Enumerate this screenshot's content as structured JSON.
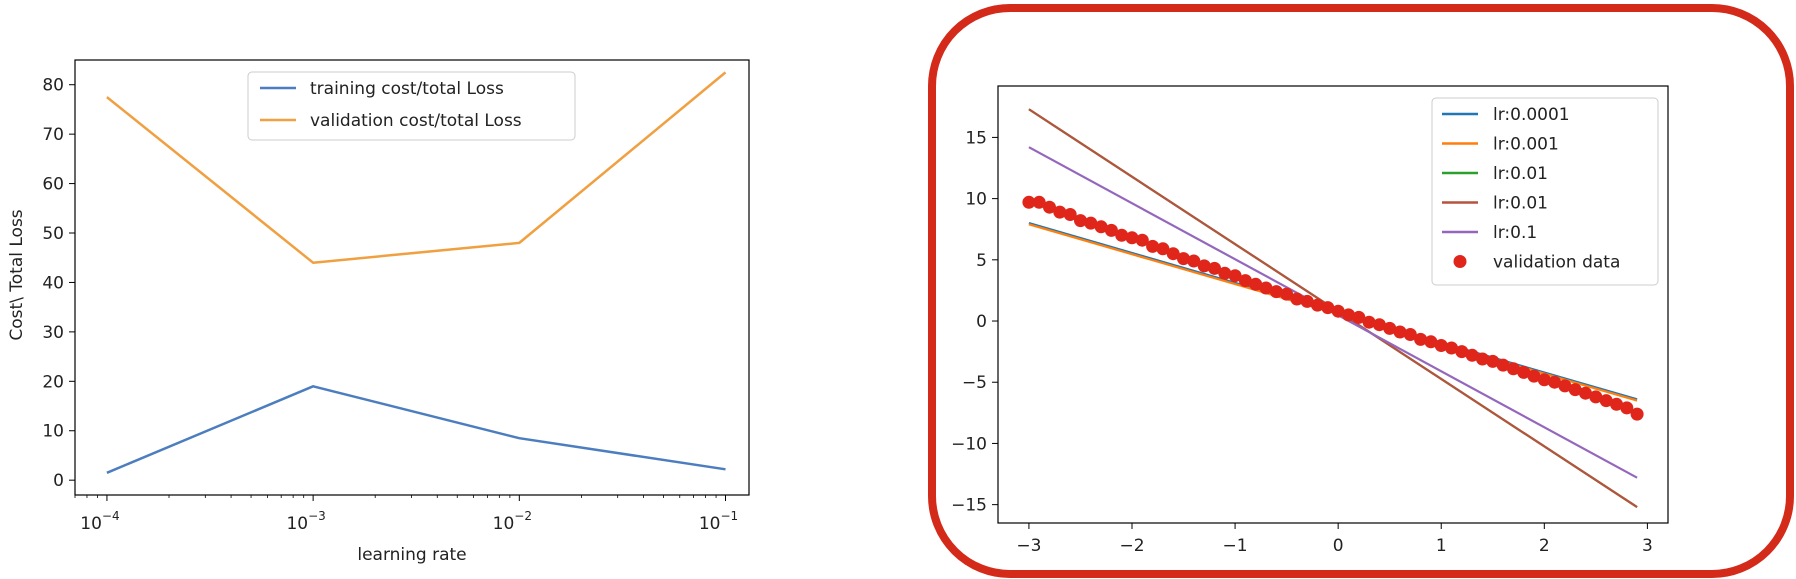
{
  "chart_data": [
    {
      "type": "line",
      "xscale": "log",
      "x": [
        0.0001,
        0.001,
        0.01,
        0.1
      ],
      "xlim": [
        7e-05,
        0.13
      ],
      "ylim": [
        -3,
        85
      ],
      "xlabel": "learning rate",
      "ylabel": "Cost\\ Total Loss",
      "x_ticks": [
        {
          "value": 0.0001,
          "base": "10",
          "exp": "−4"
        },
        {
          "value": 0.001,
          "base": "10",
          "exp": "−3"
        },
        {
          "value": 0.01,
          "base": "10",
          "exp": "−2"
        },
        {
          "value": 0.1,
          "base": "10",
          "exp": "−1"
        }
      ],
      "y_ticks": [
        {
          "value": 0,
          "label": "0"
        },
        {
          "value": 10,
          "label": "10"
        },
        {
          "value": 20,
          "label": "20"
        },
        {
          "value": 30,
          "label": "30"
        },
        {
          "value": 40,
          "label": "40"
        },
        {
          "value": 50,
          "label": "50"
        },
        {
          "value": 60,
          "label": "60"
        },
        {
          "value": 70,
          "label": "70"
        },
        {
          "value": 80,
          "label": "80"
        }
      ],
      "legend_position": "top-center",
      "grid": false,
      "series": [
        {
          "name": "training cost/total Loss",
          "color": "#4c7ebf",
          "values": [
            1.5,
            19,
            8.5,
            2.2
          ]
        },
        {
          "name": "validation cost/total Loss",
          "color": "#f0a040",
          "values": [
            77.5,
            44,
            48,
            82.5
          ]
        }
      ]
    },
    {
      "type": "line",
      "xlim": [
        -3.3,
        3.2
      ],
      "ylim": [
        -16.5,
        19.2
      ],
      "xlabel": "",
      "ylabel": "",
      "x_ticks": [
        {
          "value": -3,
          "label": "−3"
        },
        {
          "value": -2,
          "label": "−2"
        },
        {
          "value": -1,
          "label": "−1"
        },
        {
          "value": 0,
          "label": "0"
        },
        {
          "value": 1,
          "label": "1"
        },
        {
          "value": 2,
          "label": "2"
        },
        {
          "value": 3,
          "label": "3"
        }
      ],
      "y_ticks": [
        {
          "value": -15,
          "label": "−15"
        },
        {
          "value": -10,
          "label": "−10"
        },
        {
          "value": -5,
          "label": "−5"
        },
        {
          "value": 0,
          "label": "0"
        },
        {
          "value": 5,
          "label": "5"
        },
        {
          "value": 10,
          "label": "10"
        },
        {
          "value": 15,
          "label": "15"
        }
      ],
      "legend_position": "top-right",
      "grid": false,
      "highlight_color": "#d42a1a",
      "lines": [
        {
          "name": "lr:0.0001",
          "color": "#1f77b4",
          "x": [
            -3,
            2.9
          ],
          "y": [
            8.0,
            -6.4
          ]
        },
        {
          "name": "lr:0.001",
          "color": "#ff7f0e",
          "x": [
            -3,
            2.9
          ],
          "y": [
            7.9,
            -6.5
          ]
        },
        {
          "name": "lr:0.01",
          "color": "#2ca02c",
          "x": [
            -3,
            2.9
          ],
          "y": [
            17.3,
            -15.2
          ]
        },
        {
          "name": "lr:0.01",
          "color": "#b5533f",
          "x": [
            -3,
            2.9
          ],
          "y": [
            17.3,
            -15.2
          ]
        },
        {
          "name": "lr:0.1",
          "color": "#9467bd",
          "x": [
            -3,
            2.9
          ],
          "y": [
            14.2,
            -12.8
          ]
        }
      ],
      "scatter": {
        "name": "validation data",
        "color": "#e0261b",
        "x": [
          -3.0,
          -2.9,
          -2.8,
          -2.7,
          -2.6,
          -2.5,
          -2.4,
          -2.3,
          -2.2,
          -2.1,
          -2.0,
          -1.9,
          -1.8,
          -1.7,
          -1.6,
          -1.5,
          -1.4,
          -1.3,
          -1.2,
          -1.1,
          -1.0,
          -0.9,
          -0.8,
          -0.7,
          -0.6,
          -0.5,
          -0.4,
          -0.3,
          -0.2,
          -0.1,
          0.0,
          0.1,
          0.2,
          0.3,
          0.4,
          0.5,
          0.6,
          0.7,
          0.8,
          0.9,
          1.0,
          1.1,
          1.2,
          1.3,
          1.4,
          1.5,
          1.6,
          1.7,
          1.8,
          1.9,
          2.0,
          2.1,
          2.2,
          2.3,
          2.4,
          2.5,
          2.6,
          2.7,
          2.8,
          2.9
        ],
        "y": [
          9.7,
          9.7,
          9.3,
          8.9,
          8.7,
          8.2,
          8.0,
          7.7,
          7.4,
          7.0,
          6.8,
          6.6,
          6.1,
          5.9,
          5.5,
          5.1,
          4.9,
          4.5,
          4.3,
          3.9,
          3.7,
          3.3,
          3.0,
          2.7,
          2.4,
          2.2,
          1.8,
          1.6,
          1.3,
          1.1,
          0.8,
          0.5,
          0.3,
          -0.1,
          -0.3,
          -0.6,
          -0.9,
          -1.1,
          -1.5,
          -1.7,
          -2.0,
          -2.2,
          -2.5,
          -2.8,
          -3.1,
          -3.3,
          -3.6,
          -3.9,
          -4.2,
          -4.5,
          -4.8,
          -5.0,
          -5.3,
          -5.6,
          -5.9,
          -6.2,
          -6.5,
          -6.8,
          -7.1,
          -7.6
        ]
      }
    }
  ]
}
